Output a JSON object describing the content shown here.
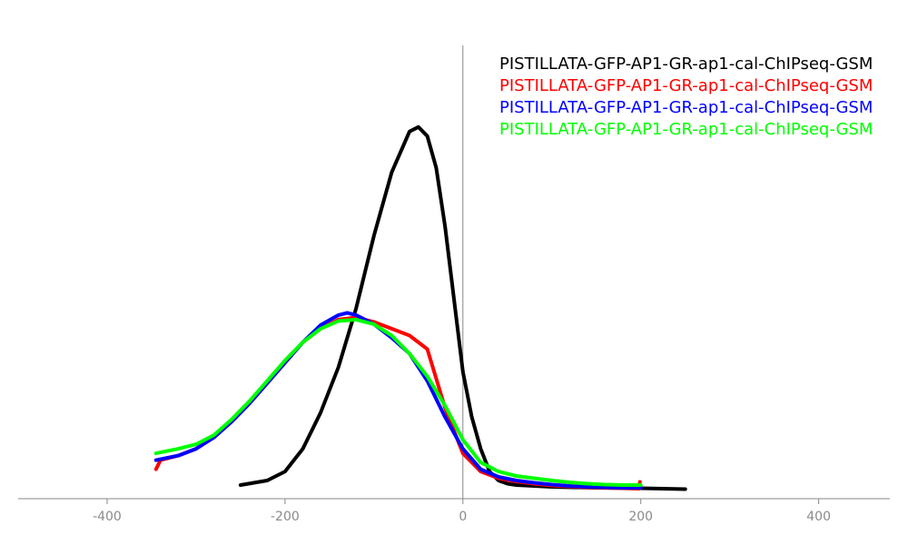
{
  "chart_data": {
    "type": "line",
    "title": "",
    "xlabel": "",
    "ylabel": "",
    "xlim": [
      -500,
      480
    ],
    "ylim": [
      0,
      1.0
    ],
    "xticks": [
      -400,
      -200,
      0,
      200,
      400
    ],
    "xtick_labels": [
      "-400",
      "-200",
      "0",
      "200",
      "400"
    ],
    "grid": false,
    "legend_position": "top-right",
    "series": [
      {
        "name": "PISTILLATA-GFP-AP1-GR-ap1-cal-ChIPseq-GSM",
        "color": "#000000",
        "x": [
          -250,
          -220,
          -200,
          -180,
          -160,
          -140,
          -120,
          -100,
          -80,
          -60,
          -50,
          -40,
          -30,
          -20,
          -10,
          0,
          10,
          20,
          30,
          40,
          50,
          60,
          80,
          100,
          150,
          200,
          250
        ],
        "y": [
          0.03,
          0.04,
          0.06,
          0.11,
          0.19,
          0.29,
          0.42,
          0.58,
          0.72,
          0.81,
          0.82,
          0.8,
          0.73,
          0.6,
          0.44,
          0.28,
          0.18,
          0.11,
          0.06,
          0.04,
          0.033,
          0.03,
          0.028,
          0.026,
          0.024,
          0.023,
          0.021
        ]
      },
      {
        "name": "PISTILLATA-GFP-AP1-GR-ap1-cal-ChIPseq-GSM",
        "color": "#ff0000",
        "x": [
          -345,
          -340,
          -320,
          -300,
          -280,
          -260,
          -240,
          -220,
          -200,
          -180,
          -160,
          -140,
          -120,
          -100,
          -80,
          -60,
          -40,
          -20,
          0,
          20,
          40,
          60,
          80,
          100,
          120,
          140,
          160,
          180,
          198,
          199
        ],
        "y": [
          0.065,
          0.085,
          0.095,
          0.11,
          0.135,
          0.17,
          0.21,
          0.255,
          0.3,
          0.345,
          0.375,
          0.395,
          0.4,
          0.39,
          0.375,
          0.36,
          0.33,
          0.2,
          0.1,
          0.06,
          0.045,
          0.038,
          0.033,
          0.029,
          0.027,
          0.025,
          0.024,
          0.023,
          0.022,
          0.037
        ]
      },
      {
        "name": "PISTILLATA-GFP-AP1-GR-ap1-cal-ChIPseq-GSM",
        "color": "#0000ff",
        "x": [
          -345,
          -320,
          -300,
          -280,
          -260,
          -240,
          -220,
          -200,
          -180,
          -160,
          -140,
          -130,
          -120,
          -100,
          -80,
          -60,
          -40,
          -20,
          0,
          20,
          40,
          60,
          80,
          100,
          120,
          140,
          160,
          180,
          200
        ],
        "y": [
          0.085,
          0.095,
          0.11,
          0.135,
          0.17,
          0.21,
          0.255,
          0.3,
          0.345,
          0.383,
          0.405,
          0.41,
          0.405,
          0.385,
          0.355,
          0.32,
          0.26,
          0.18,
          0.11,
          0.065,
          0.048,
          0.04,
          0.035,
          0.031,
          0.028,
          0.026,
          0.025,
          0.024,
          0.024
        ]
      },
      {
        "name": "PISTILLATA-GFP-AP1-GR-ap1-cal-ChIPseq-GSM",
        "color": "#00ff00",
        "x": [
          -345,
          -320,
          -300,
          -280,
          -260,
          -240,
          -220,
          -200,
          -180,
          -160,
          -140,
          -120,
          -100,
          -80,
          -60,
          -40,
          -20,
          0,
          20,
          40,
          60,
          80,
          100,
          120,
          140,
          160,
          180,
          200
        ],
        "y": [
          0.1,
          0.11,
          0.12,
          0.14,
          0.175,
          0.215,
          0.26,
          0.305,
          0.345,
          0.375,
          0.392,
          0.395,
          0.385,
          0.36,
          0.32,
          0.27,
          0.205,
          0.13,
          0.08,
          0.06,
          0.05,
          0.045,
          0.04,
          0.036,
          0.033,
          0.031,
          0.03,
          0.03
        ]
      }
    ]
  }
}
